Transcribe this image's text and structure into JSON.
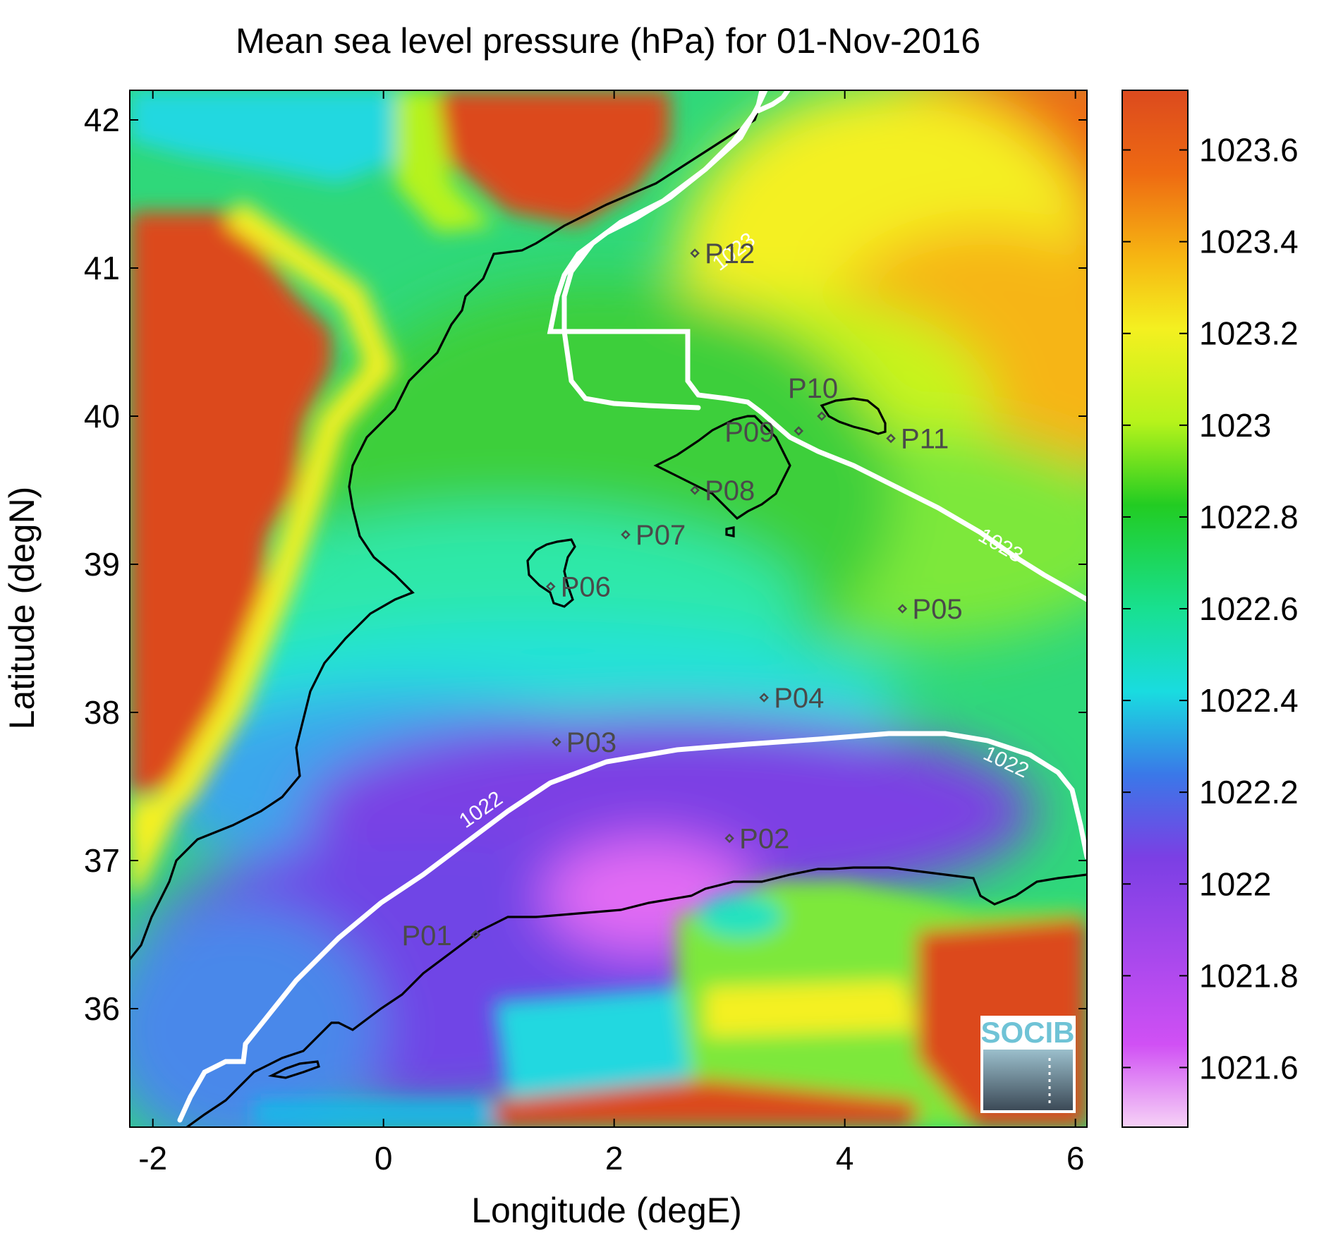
{
  "title": "Mean sea level pressure (hPa) for 01-Nov-2016",
  "x_label": "Longitude (degE)",
  "y_label": "Latitude (degN)",
  "x_ticks": [
    "-2",
    "0",
    "2",
    "4",
    "6"
  ],
  "y_ticks": [
    "36",
    "37",
    "38",
    "39",
    "40",
    "41",
    "42"
  ],
  "x_range": [
    -2.2,
    6.1
  ],
  "y_range": [
    35.2,
    42.2
  ],
  "colorbar": {
    "range": [
      1021.47,
      1023.73
    ],
    "ticks": [
      "1021.6",
      "1021.8",
      "1022",
      "1022.2",
      "1022.4",
      "1022.6",
      "1022.8",
      "1023",
      "1023.2",
      "1023.4",
      "1023.6"
    ],
    "colormap": [
      "#f6d2f6",
      "#d050f4",
      "#7b3fe4",
      "#3a78e8",
      "#19dce0",
      "#18e090",
      "#22cc22",
      "#b6f31b",
      "#f4f020",
      "#f6b512",
      "#ee6a12",
      "#dc4a1e"
    ]
  },
  "contours": [
    {
      "label": "1022",
      "color": "#ffffff"
    },
    {
      "label": "1023",
      "color": "#ffffff"
    }
  ],
  "stations": [
    {
      "name": "P01",
      "lon": 0.8,
      "lat": 36.5
    },
    {
      "name": "P02",
      "lon": 3.0,
      "lat": 37.15
    },
    {
      "name": "P03",
      "lon": 1.5,
      "lat": 37.8
    },
    {
      "name": "P04",
      "lon": 3.3,
      "lat": 38.1
    },
    {
      "name": "P05",
      "lon": 4.5,
      "lat": 38.7
    },
    {
      "name": "P06",
      "lon": 1.45,
      "lat": 38.85
    },
    {
      "name": "P07",
      "lon": 2.1,
      "lat": 39.2
    },
    {
      "name": "P08",
      "lon": 2.7,
      "lat": 39.5
    },
    {
      "name": "P09",
      "lon": 3.6,
      "lat": 39.9
    },
    {
      "name": "P10",
      "lon": 3.8,
      "lat": 40.0
    },
    {
      "name": "P11",
      "lon": 4.4,
      "lat": 39.85
    },
    {
      "name": "P12",
      "lon": 2.7,
      "lat": 41.1
    }
  ],
  "logo": {
    "text": "SOCIB"
  },
  "chart_data": {
    "type": "heatmap",
    "title": "Mean sea level pressure (hPa) for 01-Nov-2016",
    "xlabel": "Longitude (degE)",
    "ylabel": "Latitude (degN)",
    "xlim": [
      -2.2,
      6.1
    ],
    "ylim": [
      35.2,
      42.2
    ],
    "colorbar_range": [
      1021.47,
      1023.73
    ],
    "contour_levels": [
      1022,
      1023
    ]
  }
}
